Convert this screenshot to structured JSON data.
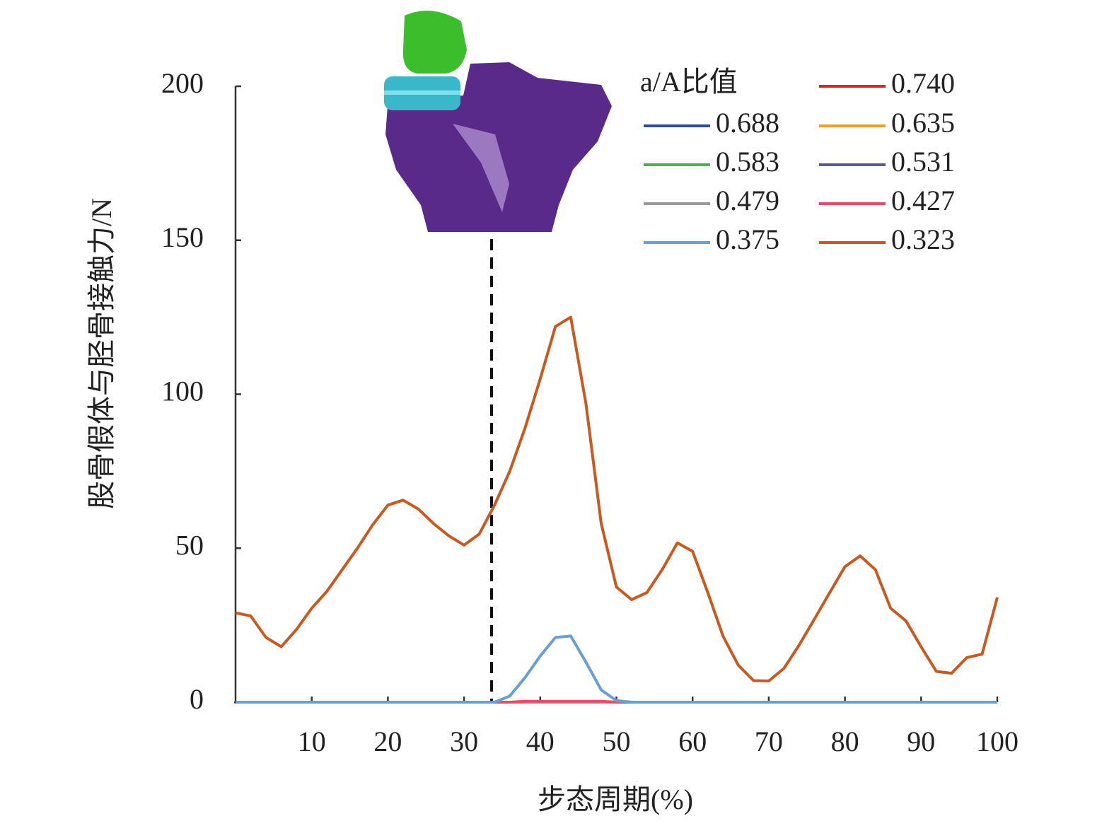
{
  "chart_data": {
    "type": "line",
    "xlabel": "步态周期(%)",
    "ylabel": "股骨假体与胫骨接触力/N",
    "legend_title": "a/A比值",
    "legend": "upper right",
    "xlim": [
      0,
      100
    ],
    "xticks": [
      10,
      20,
      30,
      40,
      50,
      60,
      70,
      80,
      90,
      100
    ],
    "ylim": [
      0,
      200
    ],
    "yticks": [
      0,
      50,
      100,
      150,
      200
    ],
    "x": [
      0,
      2,
      4,
      6,
      8,
      10,
      12,
      14,
      16,
      18,
      20,
      22,
      24,
      26,
      28,
      30,
      32,
      34,
      36,
      38,
      40,
      42,
      44,
      46,
      48,
      50,
      52,
      54,
      56,
      58,
      60,
      62,
      64,
      66,
      68,
      70,
      72,
      74,
      76,
      78,
      80,
      82,
      84,
      86,
      88,
      90,
      92,
      94,
      96,
      98,
      100
    ],
    "series": [
      {
        "name": "0.740",
        "color": "#d62728",
        "values": [
          0,
          0,
          0,
          0,
          0,
          0,
          0,
          0,
          0,
          0,
          0,
          0,
          0,
          0,
          0,
          0,
          0,
          0,
          0,
          0,
          0,
          0,
          0,
          0,
          0,
          0,
          0,
          0,
          0,
          0,
          0,
          0,
          0,
          0,
          0,
          0,
          0,
          0,
          0,
          0,
          0,
          0,
          0,
          0,
          0,
          0,
          0,
          0,
          0,
          0,
          0
        ]
      },
      {
        "name": "0.688",
        "color": "#2e4f8f",
        "values": [
          0,
          0,
          0,
          0,
          0,
          0,
          0,
          0,
          0,
          0,
          0,
          0,
          0,
          0,
          0,
          0,
          0,
          0,
          0,
          0,
          0,
          0,
          0,
          0,
          0,
          0,
          0,
          0,
          0,
          0,
          0,
          0,
          0,
          0,
          0,
          0,
          0,
          0,
          0,
          0,
          0,
          0,
          0,
          0,
          0,
          0,
          0,
          0,
          0,
          0,
          0
        ]
      },
      {
        "name": "0.635",
        "color": "#e8a32a",
        "values": [
          0,
          0,
          0,
          0,
          0,
          0,
          0,
          0,
          0,
          0,
          0,
          0,
          0,
          0,
          0,
          0,
          0,
          0,
          0,
          0,
          0,
          0,
          0,
          0,
          0,
          0,
          0,
          0,
          0,
          0,
          0,
          0,
          0,
          0,
          0,
          0,
          0,
          0,
          0,
          0,
          0,
          0,
          0,
          0,
          0,
          0,
          0,
          0,
          0,
          0,
          0
        ]
      },
      {
        "name": "0.583",
        "color": "#4caf50",
        "values": [
          0,
          0,
          0,
          0,
          0,
          0,
          0,
          0,
          0,
          0,
          0,
          0,
          0,
          0,
          0,
          0,
          0,
          0,
          0,
          0,
          0,
          0,
          0,
          0,
          0,
          0,
          0,
          0,
          0,
          0,
          0,
          0,
          0,
          0,
          0,
          0,
          0,
          0,
          0,
          0,
          0,
          0,
          0,
          0,
          0,
          0,
          0,
          0,
          0,
          0,
          0
        ]
      },
      {
        "name": "0.531",
        "color": "#5a5a9a",
        "values": [
          0,
          0,
          0,
          0,
          0,
          0,
          0,
          0,
          0,
          0,
          0,
          0,
          0,
          0,
          0,
          0,
          0,
          0,
          0,
          0,
          0,
          0,
          0,
          0,
          0,
          0,
          0,
          0,
          0,
          0,
          0,
          0,
          0,
          0,
          0,
          0,
          0,
          0,
          0,
          0,
          0,
          0,
          0,
          0,
          0,
          0,
          0,
          0,
          0,
          0,
          0
        ]
      },
      {
        "name": "0.479",
        "color": "#999999",
        "values": [
          0,
          0,
          0,
          0,
          0,
          0,
          0,
          0,
          0,
          0,
          0,
          0,
          0,
          0,
          0,
          0,
          0,
          0,
          0,
          0,
          0,
          0,
          0,
          0,
          0,
          0,
          0,
          0,
          0,
          0,
          0,
          0,
          0,
          0,
          0,
          0,
          0,
          0,
          0,
          0,
          0,
          0,
          0,
          0,
          0,
          0,
          0,
          0,
          0,
          0,
          0
        ]
      },
      {
        "name": "0.427",
        "color": "#e0506a",
        "values": [
          0,
          0,
          0,
          0,
          0,
          0,
          0,
          0,
          0,
          0,
          0,
          0,
          0,
          0,
          0,
          0,
          0,
          0,
          0,
          0.3,
          0.3,
          0.3,
          0.3,
          0.3,
          0.3,
          0,
          0,
          0,
          0,
          0,
          0,
          0,
          0,
          0,
          0,
          0,
          0,
          0,
          0,
          0,
          0,
          0,
          0,
          0,
          0,
          0,
          0,
          0,
          0,
          0,
          0
        ]
      },
      {
        "name": "0.375",
        "color": "#6a9fd4",
        "values": [
          0,
          0,
          0,
          0,
          0,
          0,
          0,
          0,
          0,
          0,
          0,
          0,
          0,
          0,
          0,
          0,
          0,
          0,
          2,
          8,
          15,
          21,
          21.5,
          13,
          4,
          0.5,
          0,
          0,
          0,
          0,
          0,
          0,
          0,
          0,
          0,
          0,
          0,
          0,
          0,
          0,
          0,
          0,
          0,
          0,
          0,
          0,
          0,
          0,
          0,
          0,
          0
        ]
      },
      {
        "name": "0.323",
        "color": "#c9591f",
        "values": [
          29,
          28,
          21,
          18,
          23.6,
          30.5,
          36,
          43,
          50,
          57.6,
          64,
          65.6,
          62.7,
          58,
          54,
          51,
          54.6,
          64,
          75,
          89,
          105,
          122,
          125,
          97,
          58,
          37.4,
          33.3,
          35.6,
          43,
          51.7,
          49,
          35.6,
          21.4,
          12,
          7,
          6.9,
          11,
          18.6,
          27,
          35.6,
          44,
          47.5,
          43,
          30.5,
          26.4,
          18,
          10,
          9.4,
          14.5,
          15.6,
          34
        ]
      }
    ]
  }
}
